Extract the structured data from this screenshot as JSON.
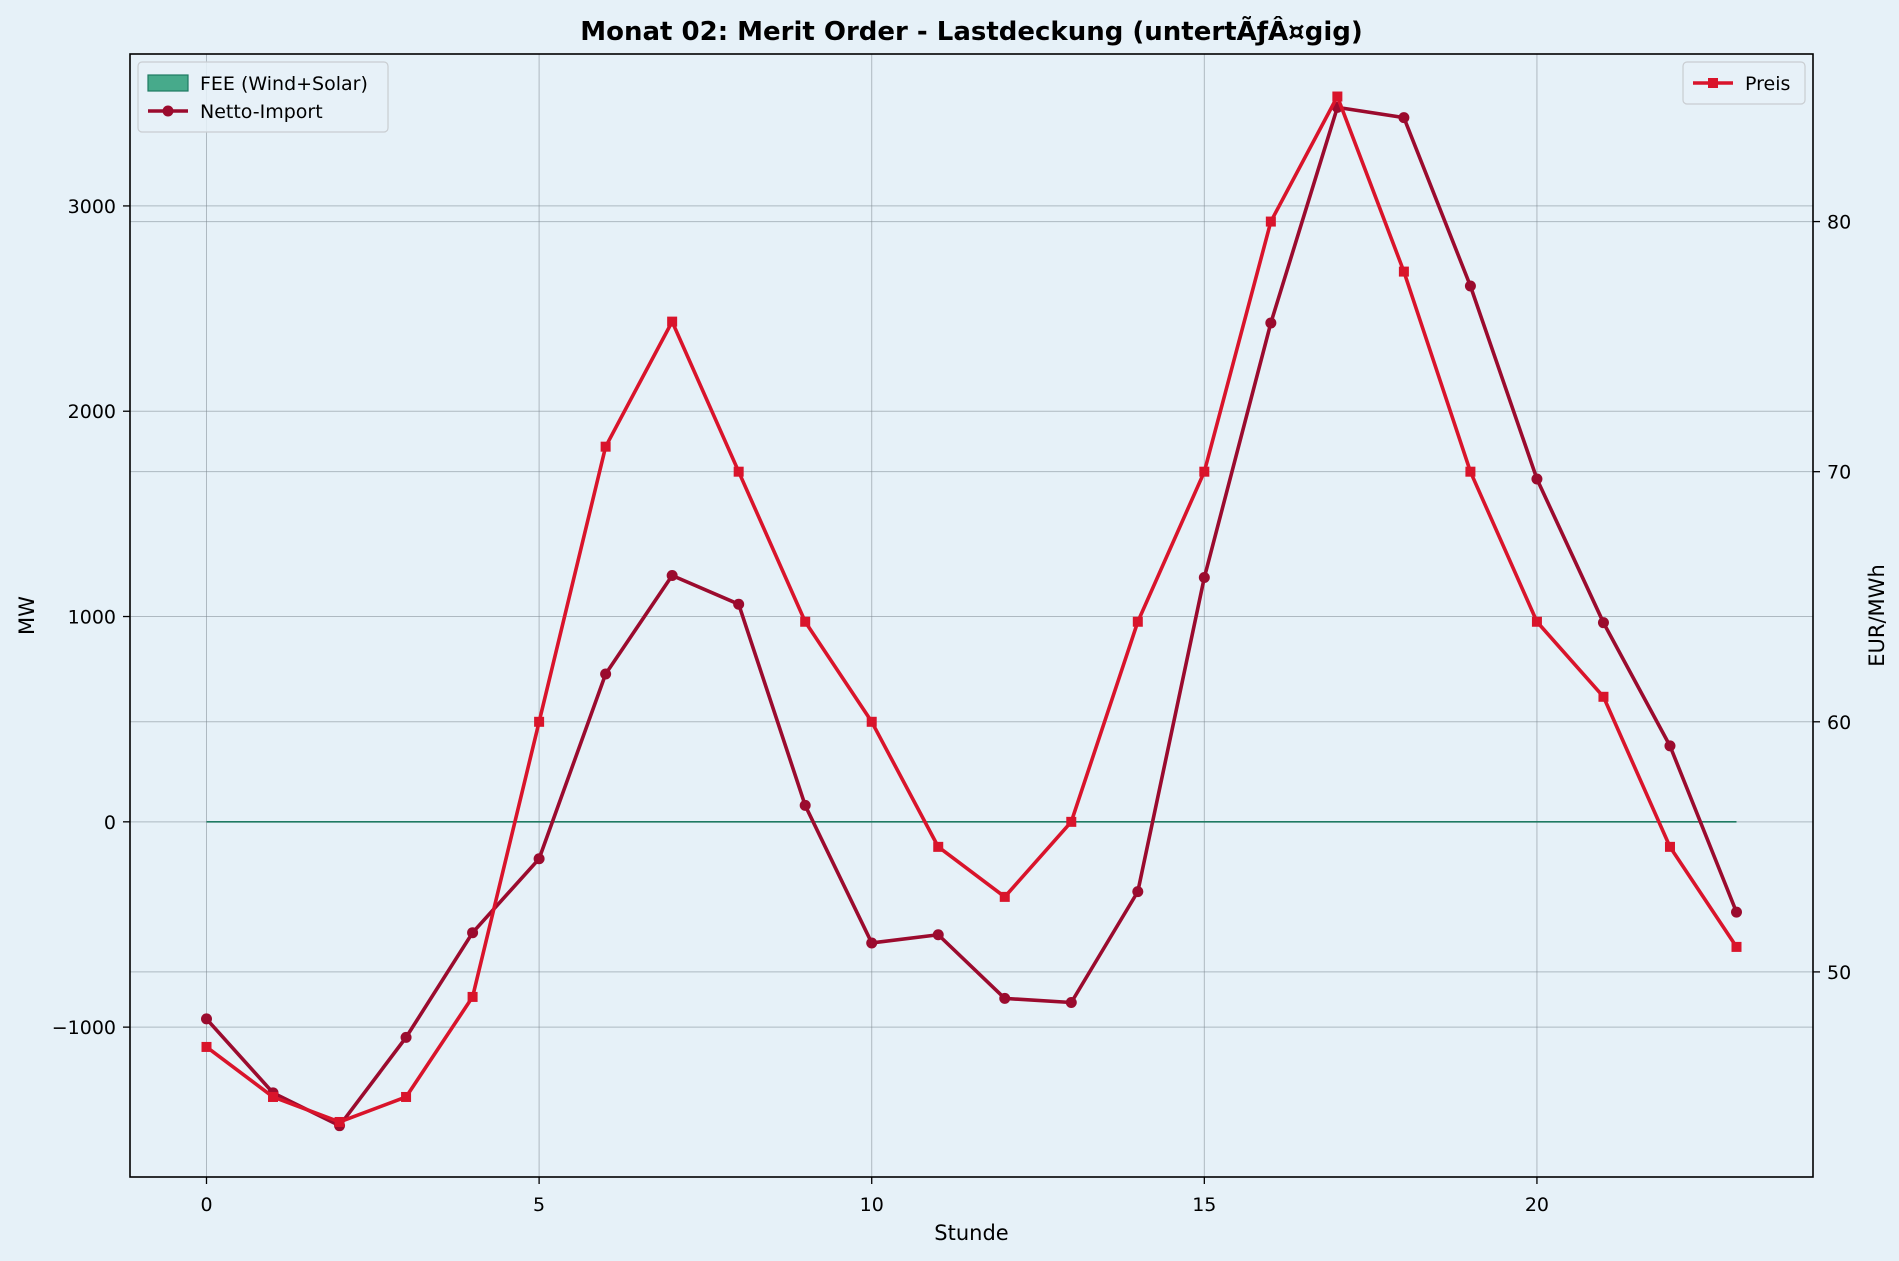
{
  "chart_data": {
    "type": "line",
    "title": "Monat 02: Merit Order - Lastdeckung (untertÃƒÂ¤gig)",
    "xlabel": "Stunde",
    "ylabel": "MW",
    "y2label": "EUR/MWh",
    "x": [
      0,
      1,
      2,
      3,
      4,
      5,
      6,
      7,
      8,
      9,
      10,
      11,
      12,
      13,
      14,
      15,
      16,
      17,
      18,
      19,
      20,
      21,
      22,
      23
    ],
    "xlim": [
      -1.15,
      24.15
    ],
    "ylim": [
      -1730,
      3740
    ],
    "y2lim": [
      41.8,
      86.7
    ],
    "xticks": [
      0,
      5,
      10,
      15,
      20
    ],
    "yticks": [
      -1000,
      0,
      1000,
      2000,
      3000
    ],
    "y2ticks": [
      50,
      60,
      70,
      80
    ],
    "grid": true,
    "series": [
      {
        "name": "FEE (Wind+Solar)",
        "type": "area",
        "axis": "left",
        "color": "#2a9d78",
        "values": [
          0,
          0,
          0,
          0,
          0,
          0,
          0,
          0,
          0,
          0,
          0,
          0,
          0,
          0,
          0,
          0,
          0,
          0,
          0,
          0,
          0,
          0,
          0,
          0
        ]
      },
      {
        "name": "Netto-Import",
        "type": "line",
        "marker": "circle",
        "axis": "left",
        "color": "#9b0b2e",
        "values": [
          -960,
          -1320,
          -1480,
          -1050,
          -540,
          -180,
          720,
          1200,
          1060,
          80,
          -590,
          -550,
          -860,
          -880,
          -340,
          1190,
          2430,
          3480,
          3430,
          2610,
          1670,
          970,
          370,
          -440
        ]
      },
      {
        "name": "Preis",
        "type": "line",
        "marker": "square",
        "axis": "right",
        "color": "#d9142b",
        "values": [
          47,
          45,
          44,
          45,
          49,
          60,
          71,
          76,
          70,
          64,
          60,
          55,
          53,
          56,
          64,
          70,
          80,
          85,
          78,
          70,
          64,
          61,
          55,
          51
        ]
      }
    ],
    "legend_left": {
      "placement": "top-left",
      "entries": [
        "FEE (Wind+Solar)",
        "Netto-Import"
      ]
    },
    "legend_right": {
      "placement": "top-right",
      "entries": [
        "Preis"
      ]
    }
  }
}
